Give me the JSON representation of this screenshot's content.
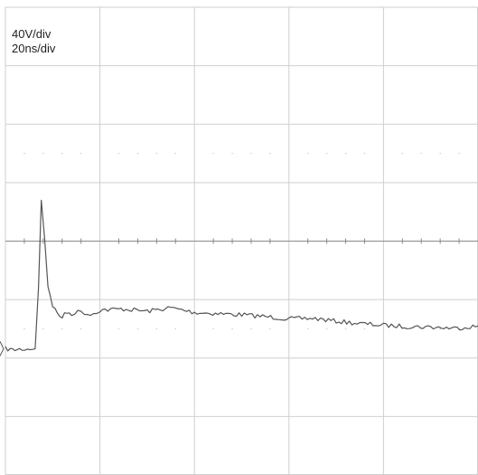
{
  "scope": {
    "scale_labels": [
      "40V/div",
      "20ns/div"
    ],
    "trace_color": "#555555",
    "grid_color": "#cfcfcf",
    "center_axis_color": "#8a8a8a"
  },
  "chart_data": {
    "type": "line",
    "title": "",
    "xlabel": "",
    "ylabel": "",
    "x_unit": "ns",
    "y_unit": "divisions from center",
    "volts_per_div": 40,
    "ns_per_div": 20,
    "x_range": [
      0,
      100
    ],
    "y_range": [
      -4,
      4
    ],
    "grid": true,
    "grid_divisions": {
      "x": 5,
      "y": 8
    },
    "series": [
      {
        "x": [
          0,
          1.5,
          3,
          6.3,
          7,
          7.6,
          8.3,
          9,
          10,
          11,
          12,
          13,
          14,
          16,
          18,
          20,
          25,
          30,
          35,
          40,
          45,
          50,
          55,
          60,
          65,
          70,
          75,
          80,
          85,
          90,
          95,
          100
        ],
        "y": [
          -1.84,
          -1.86,
          -1.85,
          -1.84,
          -0.8,
          0.7,
          0.04,
          -0.78,
          -1.1,
          -1.24,
          -1.3,
          -1.22,
          -1.24,
          -1.2,
          -1.26,
          -1.18,
          -1.16,
          -1.2,
          -1.14,
          -1.22,
          -1.24,
          -1.26,
          -1.29,
          -1.33,
          -1.32,
          -1.37,
          -1.41,
          -1.44,
          -1.46,
          -1.47,
          -1.49,
          -1.45
        ]
      }
    ]
  }
}
